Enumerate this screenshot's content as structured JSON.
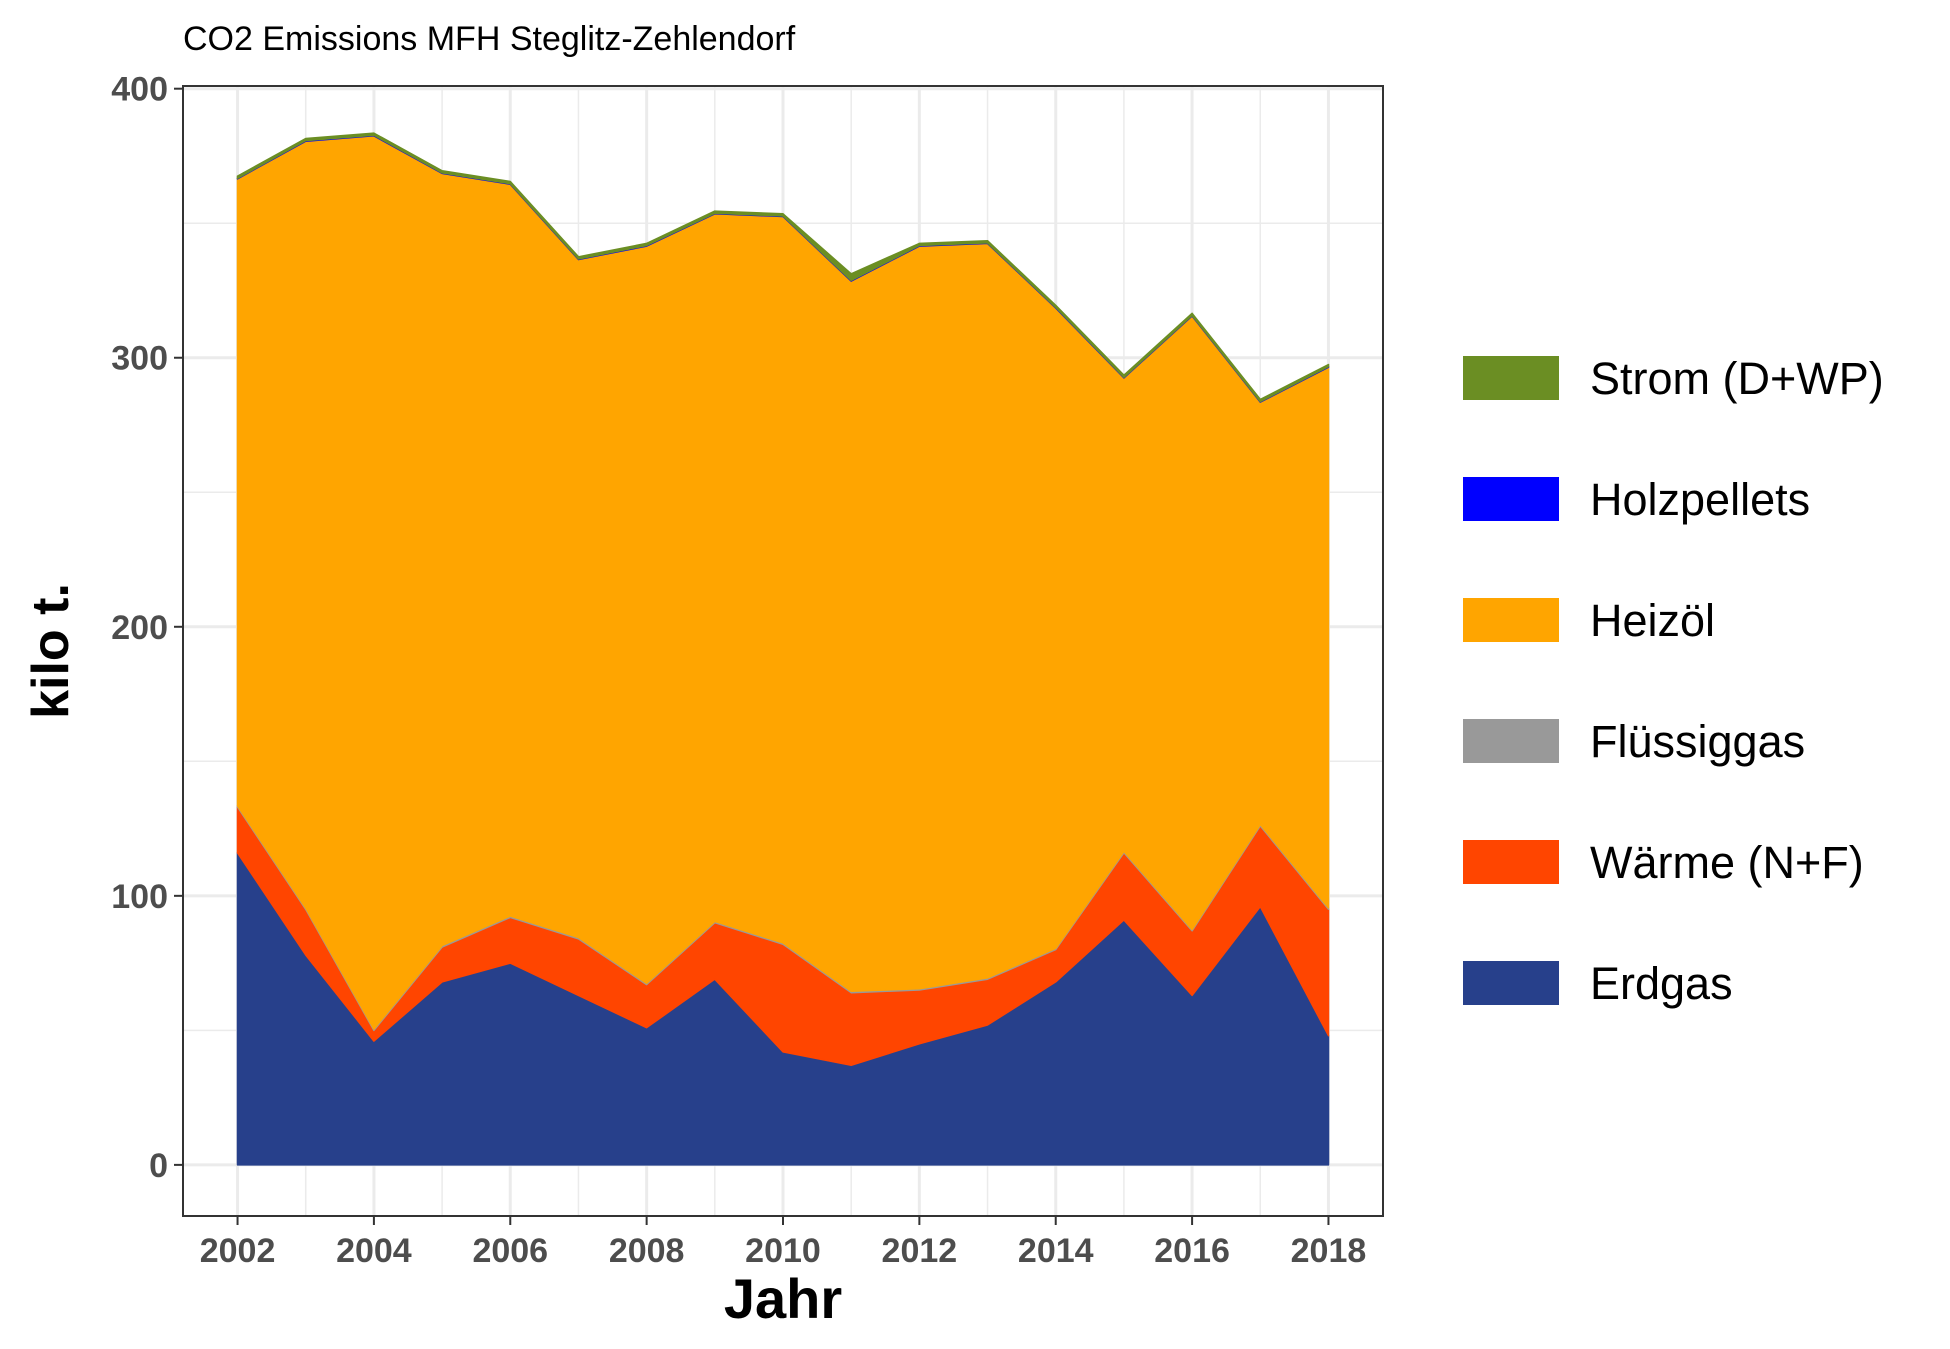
{
  "chart_data": {
    "type": "area",
    "stacked": true,
    "title": "CO2 Emissions MFH Steglitz-Zehlendorf",
    "xlabel": "Jahr",
    "ylabel": "kilo t.",
    "x": [
      2002,
      2003,
      2004,
      2005,
      2006,
      2007,
      2008,
      2009,
      2010,
      2011,
      2012,
      2013,
      2014,
      2015,
      2016,
      2017,
      2018
    ],
    "x_ticks": [
      2002,
      2004,
      2006,
      2008,
      2010,
      2012,
      2014,
      2016,
      2018
    ],
    "x_tick_labels": [
      "2002",
      "2004",
      "2006",
      "2008",
      "2010",
      "2012",
      "2014",
      "2016",
      "2018"
    ],
    "xlim": [
      2001.2,
      2018.8
    ],
    "y_ticks": [
      0,
      100,
      200,
      300,
      400
    ],
    "y_tick_labels": [
      "0",
      "100",
      "200",
      "300",
      "400"
    ],
    "ylim": [
      -19,
      401
    ],
    "grid": true,
    "legend_position": "right",
    "series": [
      {
        "name": "Erdgas",
        "color": "#27408b",
        "values": [
          116,
          78,
          46,
          68,
          75,
          63,
          51,
          69,
          42,
          37,
          45,
          52,
          68,
          91,
          63,
          96,
          48
        ]
      },
      {
        "name": "Wärme (N+F)",
        "color": "#ff4500",
        "values": [
          17,
          17,
          4,
          13,
          17,
          21,
          16,
          21,
          40,
          27,
          20,
          17,
          12,
          25,
          24,
          30,
          47
        ]
      },
      {
        "name": "Flüssiggas",
        "color": "#999999",
        "values": [
          0.5,
          0.5,
          0.5,
          0.5,
          0.5,
          0.5,
          0.5,
          0.5,
          0.5,
          0.5,
          0.5,
          0.5,
          0.5,
          0.5,
          0.5,
          0.5,
          0.5
        ]
      },
      {
        "name": "Heizöl",
        "color": "#ffa500",
        "values": [
          233,
          285,
          332,
          287,
          272,
          252,
          274,
          263,
          270,
          264,
          276,
          273,
          238,
          176,
          228,
          157,
          201
        ]
      },
      {
        "name": "Holzpellets",
        "color": "#0000ff",
        "values": [
          0.2,
          0.2,
          0.2,
          0.2,
          0.2,
          0.2,
          0.2,
          0.2,
          0.2,
          0.2,
          0.2,
          0.2,
          0.2,
          0.2,
          0.2,
          0.2,
          0.2
        ]
      },
      {
        "name": "Strom (D+WP)",
        "color": "#6b8e23",
        "values": [
          0.8,
          0.8,
          0.8,
          0.8,
          0.8,
          0.8,
          0.8,
          0.8,
          0.8,
          2.5,
          0.8,
          0.8,
          0.8,
          0.8,
          0.8,
          0.8,
          0.8
        ]
      }
    ],
    "legend_order": [
      "Strom (D+WP)",
      "Holzpellets",
      "Heizöl",
      "Flüssiggas",
      "Wärme (N+F)",
      "Erdgas"
    ]
  }
}
